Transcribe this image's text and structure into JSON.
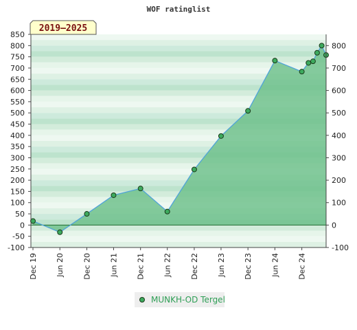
{
  "chart_data": {
    "type": "area",
    "title": "WOF ratinglist",
    "badge": "2019–2025",
    "x_tick_labels": [
      "Dec 19",
      "Jun 20",
      "Dec 20",
      "Jun 21",
      "Dec 21",
      "Jun 22",
      "Dec 22",
      "Jun 23",
      "Dec 23",
      "Jun 24",
      "Dec 24"
    ],
    "x_tick_dates": [
      "2019-12-01",
      "2020-06-01",
      "2020-12-01",
      "2021-06-01",
      "2021-12-01",
      "2022-06-01",
      "2022-12-01",
      "2023-06-01",
      "2023-12-01",
      "2024-06-01",
      "2024-12-01"
    ],
    "xlim": [
      "2019-12-01",
      "2025-05-15"
    ],
    "left_axis": {
      "ylim": [
        -100,
        850
      ],
      "ticks": [
        -100,
        -50,
        0,
        50,
        100,
        150,
        200,
        250,
        300,
        350,
        400,
        450,
        500,
        550,
        600,
        650,
        700,
        750,
        800,
        850
      ]
    },
    "right_axis": {
      "ylim": [
        -100,
        850
      ],
      "ticks": [
        -100,
        0,
        100,
        200,
        300,
        400,
        500,
        600,
        700,
        800
      ]
    },
    "series": [
      {
        "name": "MUNKH-OD Tergel",
        "color": "#4fa3d9",
        "fill": "#6cc08a",
        "marker_color": "#3daa5e",
        "points": [
          {
            "x": "2019-12-01",
            "y": 18
          },
          {
            "x": "2020-06-01",
            "y": -32
          },
          {
            "x": "2020-12-01",
            "y": 50
          },
          {
            "x": "2021-06-01",
            "y": 133
          },
          {
            "x": "2021-12-01",
            "y": 163
          },
          {
            "x": "2022-06-01",
            "y": 60
          },
          {
            "x": "2022-12-01",
            "y": 248
          },
          {
            "x": "2023-06-01",
            "y": 397
          },
          {
            "x": "2023-12-01",
            "y": 509
          },
          {
            "x": "2024-06-01",
            "y": 733
          },
          {
            "x": "2024-12-01",
            "y": 684
          },
          {
            "x": "2025-01-15",
            "y": 723
          },
          {
            "x": "2025-02-15",
            "y": 730
          },
          {
            "x": "2025-03-15",
            "y": 768
          },
          {
            "x": "2025-04-15",
            "y": 800
          },
          {
            "x": "2025-05-15",
            "y": 758
          }
        ]
      }
    ],
    "legend": {
      "position": "bottom-center",
      "label": "MUNKH-OD Tergel"
    },
    "grid": "horizontal bands",
    "zero_line": true
  }
}
